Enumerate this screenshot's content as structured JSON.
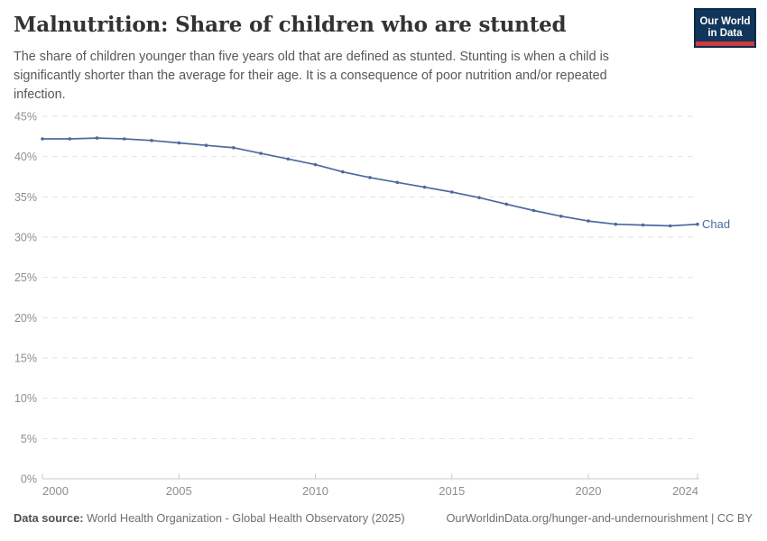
{
  "header": {
    "title": "Malnutrition: Share of children who are stunted",
    "subtitle": "The share of children younger than five years old that are defined as stunted. Stunting is when a child is significantly shorter than the average for their age. It is a consequence of poor nutrition and/or repeated infection.",
    "logo": {
      "line1": "Our World",
      "line2": "in Data"
    }
  },
  "chart_data": {
    "type": "line",
    "title": "Malnutrition: Share of children who are stunted",
    "xlabel": "",
    "ylabel": "",
    "x": [
      2000,
      2001,
      2002,
      2003,
      2004,
      2005,
      2006,
      2007,
      2008,
      2009,
      2010,
      2011,
      2012,
      2013,
      2014,
      2015,
      2016,
      2017,
      2018,
      2019,
      2020,
      2021,
      2022,
      2023,
      2024
    ],
    "series": [
      {
        "name": "Chad",
        "color": "#4c6a9c",
        "values": [
          42.2,
          42.2,
          42.3,
          42.2,
          42.0,
          41.7,
          41.4,
          41.1,
          40.4,
          39.7,
          39.0,
          38.1,
          37.4,
          36.8,
          36.2,
          35.6,
          34.9,
          34.1,
          33.3,
          32.6,
          32.0,
          31.6,
          31.5,
          31.4,
          31.6
        ]
      }
    ],
    "xlim": [
      2000,
      2024
    ],
    "ylim": [
      0,
      45
    ],
    "xticks": [
      2000,
      2005,
      2010,
      2015,
      2020,
      2024
    ],
    "yticks": [
      0,
      5,
      10,
      15,
      20,
      25,
      30,
      35,
      40,
      45
    ],
    "ytick_suffix": "%",
    "grid": "horizontal-dashed",
    "legend_position": "end-of-line-label"
  },
  "footer": {
    "datasource_label": "Data source:",
    "datasource_text": " World Health Organization - Global Health Observatory (2025)",
    "citation": "OurWorldinData.org/hunger-and-undernourishment | CC BY"
  },
  "colors": {
    "line": "#4c6a9c",
    "grid": "#e2e2e2",
    "axis": "#c8c8c8",
    "tick_label": "#8e8e8e",
    "title": "#333333",
    "subtitle": "#56595e",
    "footer": "#6f6f6f",
    "logo_bg": "#12365b",
    "logo_red": "#cf3a3f"
  }
}
